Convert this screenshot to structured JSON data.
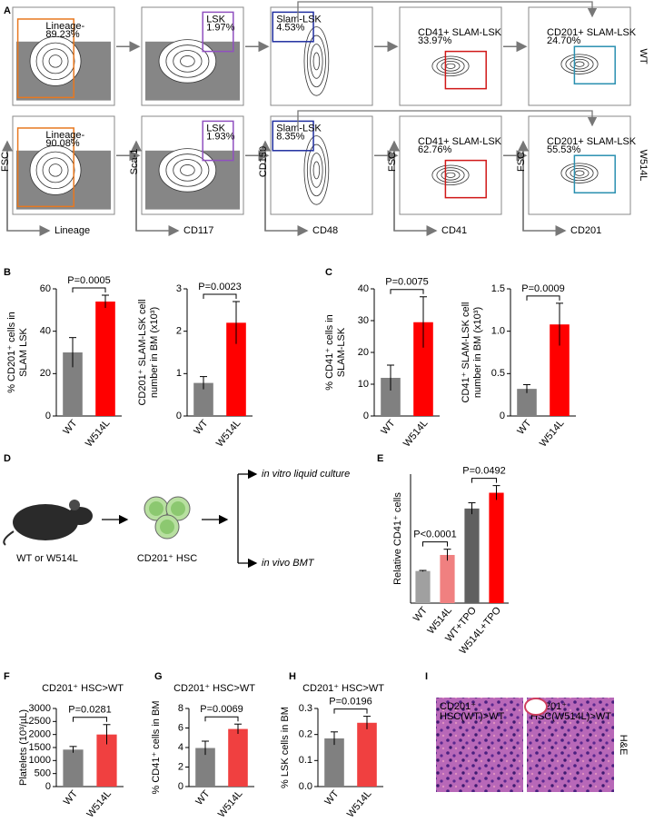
{
  "panel_labels": [
    "A",
    "B",
    "C",
    "D",
    "E",
    "F",
    "G",
    "H",
    "I"
  ],
  "flow": {
    "rows": [
      {
        "label": "WT",
        "gates": [
          {
            "name": "Lineage-",
            "pct": "89.23%"
          },
          {
            "name": "LSK",
            "pct": "1.97%"
          },
          {
            "name": "Slam-LSK",
            "pct": "4.53%"
          },
          {
            "name": "CD41+ SLAM-LSK",
            "pct": "33.97%"
          },
          {
            "name": "CD201+ SLAM-LSK",
            "pct": "24.70%"
          }
        ]
      },
      {
        "label": "W514L",
        "gates": [
          {
            "name": "Lineage-",
            "pct": "90.08%"
          },
          {
            "name": "LSK",
            "pct": "1.93%"
          },
          {
            "name": "Slam-LSK",
            "pct": "8.35%"
          },
          {
            "name": "CD41+ SLAM-LSK",
            "pct": "62.76%"
          },
          {
            "name": "CD201+ SLAM-LSK",
            "pct": "55.53%"
          }
        ]
      }
    ],
    "axes": [
      {
        "y": "FSC",
        "x": "Lineage"
      },
      {
        "y": "Sca-1",
        "x": "CD117"
      },
      {
        "y": "CD150",
        "x": "CD48"
      },
      {
        "y": "FSC",
        "x": "CD41"
      },
      {
        "y": "FSC",
        "x": "CD201"
      }
    ]
  },
  "diagram": {
    "source": "WT or W514L",
    "cells": "CD201⁺ HSC",
    "outcomes": [
      "in vitro liquid culture",
      "in vivo BMT"
    ]
  },
  "histology": {
    "images": [
      {
        "lines": [
          "CD201⁺",
          "HSC(WT)>WT"
        ]
      },
      {
        "lines": [
          "CD201⁺",
          "HSC(W514L)>WT"
        ]
      }
    ],
    "stain": "H&E"
  },
  "chart_data": [
    {
      "type": "bar",
      "ylabel": [
        "% CD201⁺ cells in",
        "SLAM LSK"
      ],
      "categories": [
        "WT",
        "W514L"
      ],
      "values": [
        30,
        54
      ],
      "errors": [
        7,
        3
      ],
      "colors": [
        "#808080",
        "#ff0000"
      ],
      "ylim": [
        0,
        60
      ],
      "yticks": [
        0,
        20,
        40,
        60
      ],
      "annotations": [
        "P=0.0005"
      ]
    },
    {
      "type": "bar",
      "ylabel": [
        "CD201⁺ SLAM-LSK cell",
        "number in BM (x10³)"
      ],
      "categories": [
        "WT",
        "W514L"
      ],
      "values": [
        0.78,
        2.2
      ],
      "errors": [
        0.15,
        0.5
      ],
      "colors": [
        "#808080",
        "#ff0000"
      ],
      "ylim": [
        0,
        3
      ],
      "yticks": [
        0,
        1,
        2,
        3
      ],
      "annotations": [
        "P=0.0023"
      ]
    },
    {
      "type": "bar",
      "ylabel": [
        "% CD41⁺ cells in",
        "SLAM-LSK"
      ],
      "categories": [
        "WT",
        "W514L"
      ],
      "values": [
        12,
        29.5
      ],
      "errors": [
        4,
        8
      ],
      "colors": [
        "#808080",
        "#ff0000"
      ],
      "ylim": [
        0,
        40
      ],
      "yticks": [
        0,
        10,
        20,
        30,
        40
      ],
      "annotations": [
        "P=0.0075"
      ]
    },
    {
      "type": "bar",
      "ylabel": [
        "CD41⁺ SLAM-LSK cell",
        "number in BM (x10³)"
      ],
      "categories": [
        "WT",
        "W514L"
      ],
      "values": [
        0.32,
        1.08
      ],
      "errors": [
        0.05,
        0.25
      ],
      "colors": [
        "#808080",
        "#ff0000"
      ],
      "ylim": [
        0,
        1.5
      ],
      "yticks": [
        0,
        0.5,
        {
          "value": 1,
          "label": "1.0"
        },
        1.5
      ],
      "annotations": [
        "P=0.0009"
      ]
    },
    {
      "type": "bar",
      "ylabel": [
        "Relative CD41⁺ cells"
      ],
      "categories": [
        "WT",
        "W514L",
        "WT+TPO",
        "W514L+TPO"
      ],
      "values": [
        1.12,
        1.68,
        3.3,
        3.85
      ],
      "errors": [
        0.02,
        0.2,
        0.2,
        0.25
      ],
      "colors": [
        "#a0a0a0",
        "#f08080",
        "#606060",
        "#ff0000"
      ],
      "ylim": [
        0,
        4.5
      ],
      "annotations": [
        "P<0.0001",
        "P=0.0492"
      ]
    },
    {
      "type": "bar",
      "title": "CD201⁺ HSC>WT",
      "ylabel": [
        "Platelets (10³/µL)"
      ],
      "categories": [
        "WT",
        "W514L"
      ],
      "values": [
        1420,
        2000
      ],
      "errors": [
        120,
        380
      ],
      "colors": [
        "#808080",
        "#f04040"
      ],
      "ylim": [
        0,
        3000
      ],
      "yticks": [
        0,
        500,
        1000,
        1500,
        2000,
        2500,
        3000
      ],
      "annotations": [
        "P=0.0281"
      ]
    },
    {
      "type": "bar",
      "title": "CD201⁺ HSC>WT",
      "ylabel": [
        "% CD41⁺ cells in BM"
      ],
      "categories": [
        "WT",
        "W514L"
      ],
      "values": [
        3.95,
        5.9
      ],
      "errors": [
        0.7,
        0.5
      ],
      "colors": [
        "#808080",
        "#f04040"
      ],
      "ylim": [
        0,
        8
      ],
      "yticks": [
        0,
        2,
        4,
        6,
        8
      ],
      "annotations": [
        "P=0.0069"
      ]
    },
    {
      "type": "bar",
      "title": "CD201⁺ HSC>WT",
      "ylabel": [
        "% LSK cells in BM"
      ],
      "categories": [
        "WT",
        "W514L"
      ],
      "values": [
        0.185,
        0.245
      ],
      "errors": [
        0.025,
        0.025
      ],
      "colors": [
        "#808080",
        "#f04040"
      ],
      "ylim": [
        0,
        0.3
      ],
      "yticks": [
        {
          "value": 0,
          "label": "0.0"
        },
        0.1,
        0.2,
        0.3
      ],
      "annotations": [
        "P=0.0196"
      ]
    }
  ]
}
